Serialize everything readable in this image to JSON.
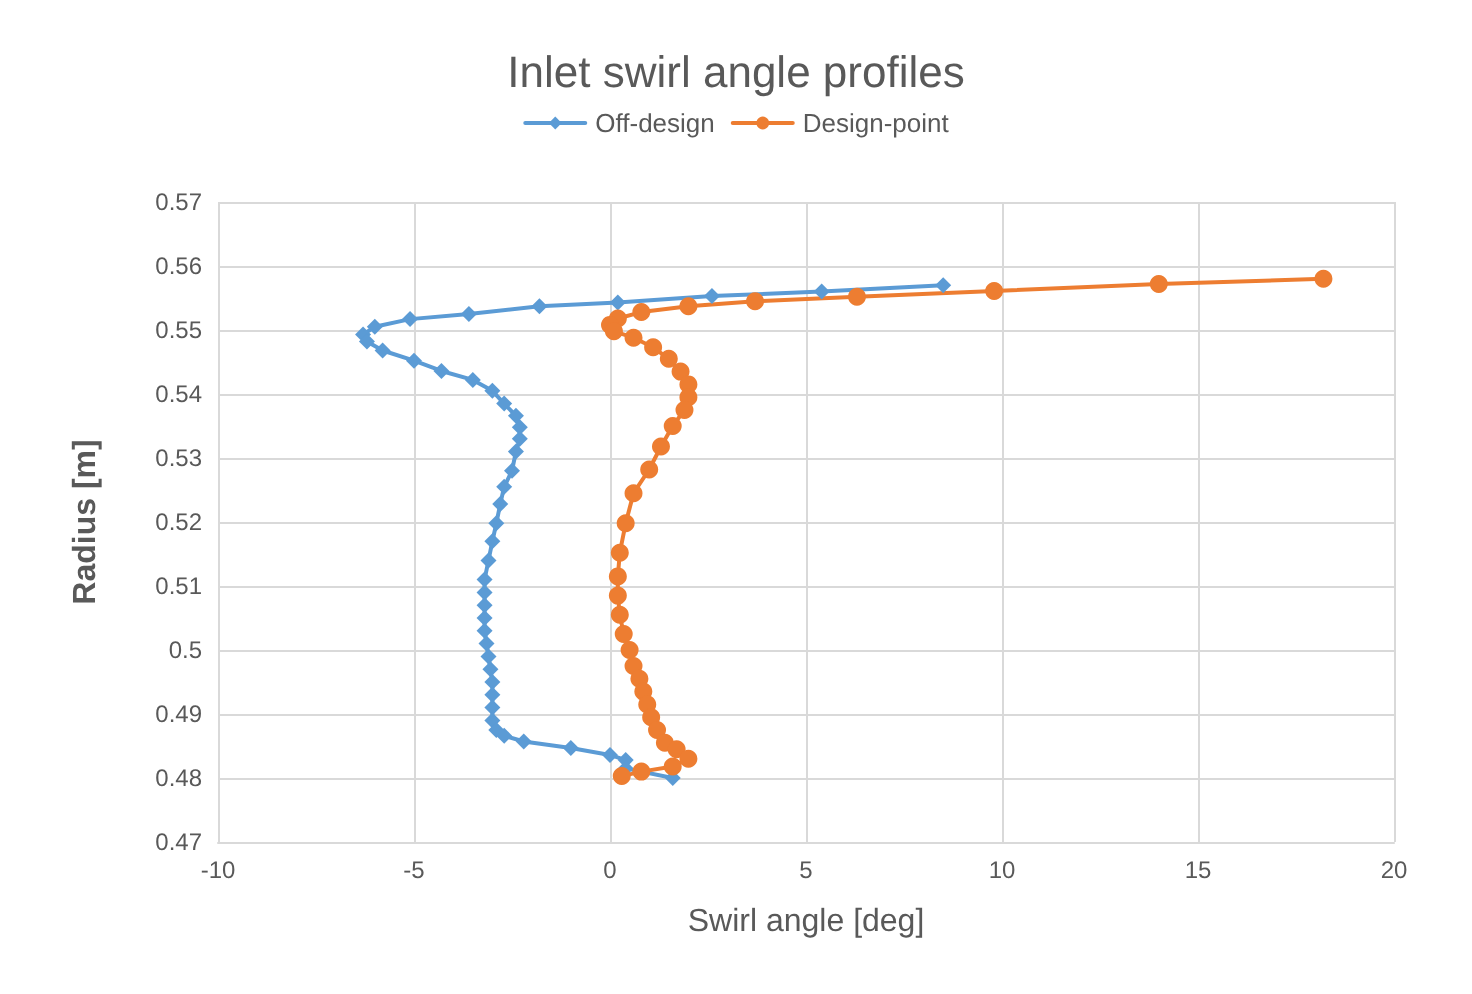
{
  "chart_data": {
    "type": "line",
    "title": "Inlet swirl angle profiles",
    "xlabel": "Swirl angle [deg]",
    "ylabel": "Radius [m]",
    "xlim": [
      -10,
      20
    ],
    "xticks": [
      -10,
      -5,
      0,
      5,
      10,
      15,
      20
    ],
    "ylim": [
      0.47,
      0.57
    ],
    "yticks": [
      0.47,
      0.48,
      0.49,
      0.5,
      0.51,
      0.52,
      0.53,
      0.54,
      0.55,
      0.56,
      0.57
    ],
    "grid": true,
    "legend": "top",
    "series": [
      {
        "name": "Off-design",
        "color": "#5b9bd5",
        "marker": "diamond",
        "x": [
          8.5,
          5.4,
          2.6,
          0.2,
          -1.8,
          -3.6,
          -5.1,
          -6.0,
          -6.3,
          -6.2,
          -5.8,
          -5.0,
          -4.3,
          -3.5,
          -3.0,
          -2.7,
          -2.4,
          -2.3,
          -2.3,
          -2.4,
          -2.5,
          -2.7,
          -2.8,
          -2.9,
          -3.0,
          -3.1,
          -3.2,
          -3.2,
          -3.2,
          -3.2,
          -3.2,
          -3.15,
          -3.1,
          -3.05,
          -3.0,
          -3.0,
          -3.0,
          -3.0,
          -2.9,
          -2.7,
          -2.2,
          -1.0,
          0.0,
          0.4,
          0.4,
          1.6
        ],
        "values": [
          0.557,
          0.556,
          0.5553,
          0.5543,
          0.5537,
          0.5525,
          0.5517,
          0.5505,
          0.5493,
          0.5482,
          0.5468,
          0.5452,
          0.5436,
          0.5422,
          0.5405,
          0.5385,
          0.5366,
          0.5348,
          0.533,
          0.531,
          0.528,
          0.5255,
          0.5228,
          0.5198,
          0.517,
          0.514,
          0.511,
          0.509,
          0.507,
          0.505,
          0.503,
          0.501,
          0.499,
          0.497,
          0.495,
          0.493,
          0.491,
          0.489,
          0.4875,
          0.4866,
          0.4857,
          0.4847,
          0.4836,
          0.4828,
          0.4815,
          0.48
        ]
      },
      {
        "name": "Design-point",
        "color": "#ed7d31",
        "marker": "circle",
        "x": [
          18.2,
          14.0,
          9.8,
          6.3,
          3.7,
          2.0,
          0.8,
          0.2,
          0.0,
          0.1,
          0.6,
          1.1,
          1.5,
          1.8,
          2.0,
          2.0,
          1.9,
          1.6,
          1.3,
          1.0,
          0.6,
          0.4,
          0.25,
          0.2,
          0.2,
          0.25,
          0.35,
          0.5,
          0.6,
          0.75,
          0.85,
          0.95,
          1.05,
          1.2,
          1.4,
          1.7,
          2.0,
          1.6,
          0.8,
          0.3
        ],
        "values": [
          0.558,
          0.5572,
          0.5561,
          0.5552,
          0.5545,
          0.5537,
          0.5528,
          0.5518,
          0.5508,
          0.5498,
          0.5488,
          0.5473,
          0.5455,
          0.5435,
          0.5415,
          0.5395,
          0.5375,
          0.535,
          0.5318,
          0.5282,
          0.5245,
          0.5198,
          0.5152,
          0.5115,
          0.5085,
          0.5055,
          0.5025,
          0.5,
          0.4975,
          0.4955,
          0.4935,
          0.4915,
          0.4895,
          0.4875,
          0.4855,
          0.4845,
          0.483,
          0.4818,
          0.481,
          0.4803
        ]
      }
    ]
  }
}
